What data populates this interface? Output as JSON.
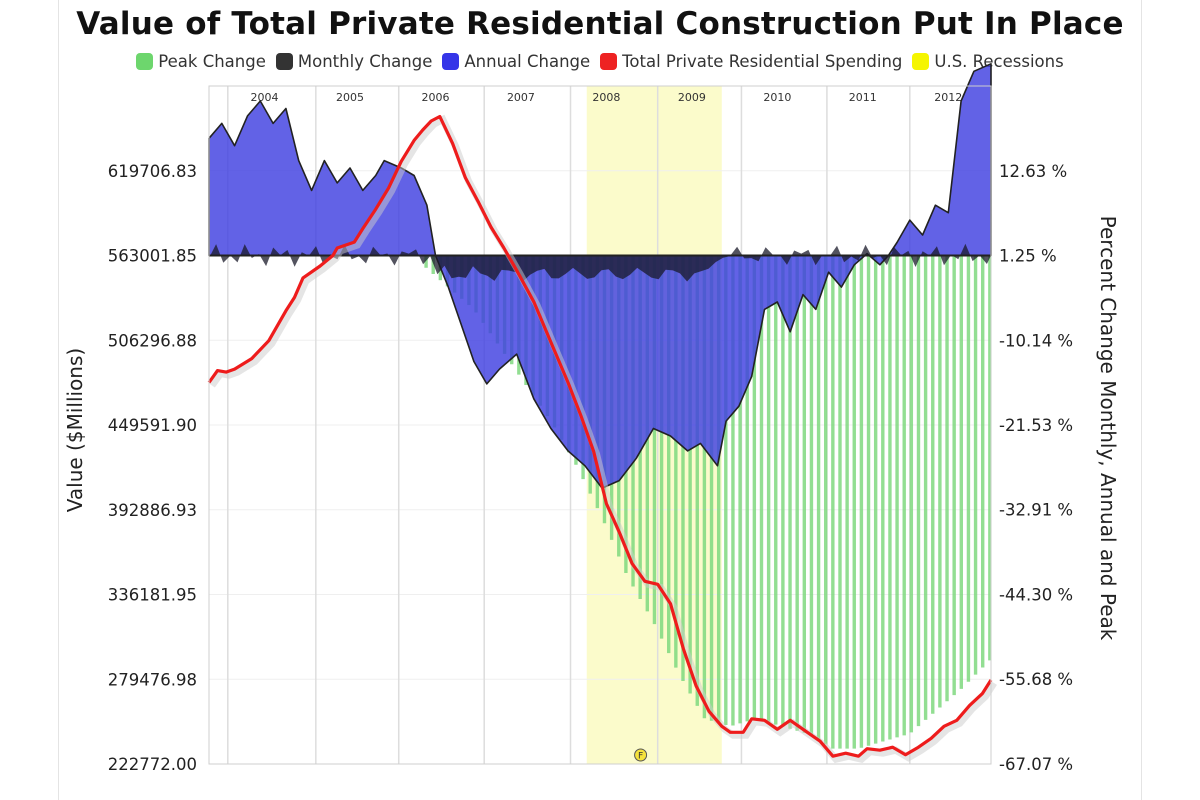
{
  "chart_data": {
    "type": "area",
    "title": "Value of Total Private Residential Construction Put In Place",
    "y_left_label": "Value ($Millions)",
    "y_right_label": "Percent Change Monthly, Annual and Peak",
    "y_left_ticks": [
      "619706.83",
      "563001.85",
      "506296.88",
      "449591.90",
      "392886.93",
      "336181.95",
      "279476.98",
      "222772.00"
    ],
    "y_right_ticks": [
      "12.63 %",
      "1.25 %",
      "-10.14 %",
      "-21.53 %",
      "-32.91 %",
      "-44.30 %",
      "-55.68 %",
      "-67.07 %"
    ],
    "y_left_range": [
      222772.0,
      676411.8
    ],
    "y_right_range": [
      -67.07,
      24.02
    ],
    "x_range": [
      2003.5,
      2012.65
    ],
    "x_tick_labels": [
      "2004",
      "2005",
      "2006",
      "2007",
      "2008",
      "2009",
      "2010",
      "2011",
      "2012"
    ],
    "legend": [
      {
        "name": "Peak Change",
        "color": "#6dd66d"
      },
      {
        "name": "Monthly Change",
        "color": "#333333"
      },
      {
        "name": "Annual Change",
        "color": "#3535e8"
      },
      {
        "name": "Total Private Residential Spending",
        "color": "#ee2222"
      },
      {
        "name": "U.S. Recessions",
        "color": "#f5f500"
      }
    ],
    "recession": {
      "start": 2007.92,
      "end": 2009.5
    },
    "event_marker": "F",
    "series": [
      {
        "name": "Total Private Residential Spending",
        "axis": "left",
        "x": [
          2003.5,
          2003.6,
          2003.7,
          2003.8,
          2004.0,
          2004.2,
          2004.4,
          2004.5,
          2004.6,
          2004.8,
          2004.95,
          2005.0,
          2005.2,
          2005.3,
          2005.45,
          2005.6,
          2005.75,
          2005.9,
          2006.0,
          2006.1,
          2006.2,
          2006.35,
          2006.5,
          2006.65,
          2006.8,
          2006.95,
          2007.1,
          2007.3,
          2007.5,
          2007.7,
          2007.85,
          2008.0,
          2008.15,
          2008.3,
          2008.45,
          2008.6,
          2008.75,
          2008.9,
          2009.05,
          2009.2,
          2009.35,
          2009.5,
          2009.6,
          2009.75,
          2009.85,
          2010.0,
          2010.15,
          2010.3,
          2010.5,
          2010.65,
          2010.8,
          2010.95,
          2011.1,
          2011.2,
          2011.35,
          2011.5,
          2011.65,
          2011.8,
          2011.95,
          2012.1,
          2012.25,
          2012.4,
          2012.55,
          2012.65
        ],
        "values": [
          478000,
          486000,
          485000,
          487000,
          494000,
          506000,
          526000,
          535000,
          548000,
          556000,
          563000,
          568000,
          572000,
          581000,
          594000,
          608000,
          626000,
          640000,
          647000,
          653000,
          656000,
          638000,
          615000,
          599000,
          582000,
          568000,
          553000,
          532000,
          505000,
          478000,
          456000,
          432000,
          397000,
          378000,
          357000,
          345000,
          343000,
          330000,
          300000,
          275000,
          258000,
          248000,
          244000,
          244000,
          253000,
          252000,
          246000,
          252000,
          244000,
          238000,
          228000,
          230000,
          228000,
          233000,
          232000,
          234000,
          229000,
          234000,
          240000,
          248000,
          252000,
          262000,
          270000,
          279000
        ]
      },
      {
        "name": "Annual Change",
        "axis": "right",
        "x": [
          2003.5,
          2003.65,
          2003.8,
          2003.95,
          2004.1,
          2004.25,
          2004.4,
          2004.55,
          2004.7,
          2004.85,
          2005.0,
          2005.15,
          2005.3,
          2005.45,
          2005.55,
          2005.75,
          2005.9,
          2006.05,
          2006.15,
          2006.3,
          2006.45,
          2006.6,
          2006.75,
          2006.9,
          2007.1,
          2007.3,
          2007.5,
          2007.7,
          2007.9,
          2008.1,
          2008.3,
          2008.5,
          2008.7,
          2008.9,
          2009.1,
          2009.25,
          2009.45,
          2009.55,
          2009.7,
          2009.85,
          2010.0,
          2010.15,
          2010.3,
          2010.45,
          2010.6,
          2010.75,
          2010.9,
          2011.05,
          2011.2,
          2011.35,
          2011.45,
          2011.55,
          2011.7,
          2011.85,
          2012.0,
          2012.15,
          2012.3,
          2012.45,
          2012.65
        ],
        "values": [
          17,
          19,
          16,
          20,
          22,
          19,
          21,
          14,
          10,
          14,
          11,
          13,
          10,
          12,
          14,
          13,
          12,
          8,
          1.25,
          -3,
          -8,
          -13,
          -16,
          -14,
          -12,
          -18,
          -22,
          -25,
          -27,
          -30,
          -29,
          -26,
          -22,
          -23,
          -25,
          -24,
          -27,
          -21,
          -19,
          -15,
          -6,
          -5,
          -9,
          -4,
          -6,
          -1,
          -3,
          0,
          1.5,
          0,
          1.25,
          3,
          6,
          4,
          8,
          7,
          22,
          26,
          27
        ]
      },
      {
        "name": "Peak Change",
        "axis": "right",
        "x": [
          2006.0,
          2006.3,
          2006.6,
          2006.9,
          2007.2,
          2007.5,
          2007.8,
          2008.1,
          2008.4,
          2008.7,
          2009.0,
          2009.3,
          2009.6,
          2009.9,
          2010.2,
          2010.5,
          2010.8,
          2011.1,
          2011.4,
          2011.7,
          2012.0,
          2012.3,
          2012.65
        ],
        "values": [
          0,
          -3,
          -6,
          -11,
          -16,
          -21,
          -27,
          -34,
          -42,
          -48,
          -55,
          -61,
          -62,
          -61,
          -62,
          -63,
          -65,
          -65,
          -64,
          -63,
          -60,
          -57,
          -53
        ]
      }
    ]
  }
}
